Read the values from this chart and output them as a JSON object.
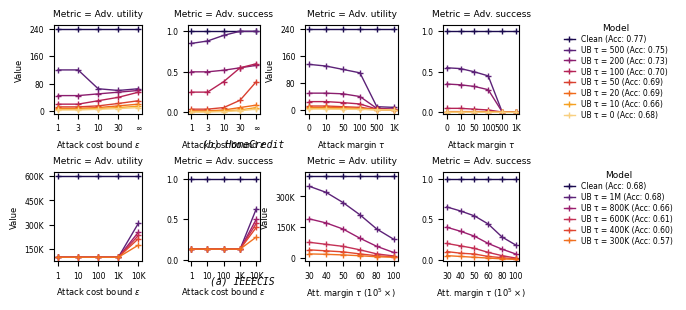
{
  "ieee_colors": [
    "#1a0a4e",
    "#5c2278",
    "#8b1e6e",
    "#b52255",
    "#d94030",
    "#f06a1a",
    "#f5a020",
    "#f8d080"
  ],
  "ieee_labels": [
    "Clean (Acc: 0.77)",
    "UB τ = 500 (Acc: 0.75)",
    "UB τ = 200 (Acc: 0.73)",
    "UB τ = 100 (Acc: 0.70)",
    "UB τ = 50 (Acc: 0.69)",
    "UB τ = 20 (Acc: 0.69)",
    "UB τ = 10 (Acc: 0.66)",
    "UB τ = 0 (Acc: 0.68)"
  ],
  "hc_colors": [
    "#1a0a4e",
    "#5c2278",
    "#9b1e6e",
    "#c43055",
    "#e04530",
    "#f07020"
  ],
  "hc_labels": [
    "Clean (Acc: 0.68)",
    "UB τ = 1M (Acc: 0.68)",
    "UB τ = 800K (Acc: 0.66)",
    "UB τ = 600K (Acc: 0.61)",
    "UB τ = 400K (Acc: 0.60)",
    "UB τ = 300K (Acc: 0.57)"
  ],
  "ieee_eps_xticks": [
    "1",
    "3",
    "10",
    "30",
    "∞"
  ],
  "ieee_eps_xvals": [
    0,
    1,
    2,
    3,
    4
  ],
  "ieee_tau_xticks": [
    "0",
    "10",
    "50",
    "100",
    "500",
    "1K"
  ],
  "ieee_tau_xvals": [
    0,
    1,
    2,
    3,
    4,
    5
  ],
  "hc_eps_xticks": [
    "1",
    "10",
    "100",
    "1K",
    "10K"
  ],
  "hc_eps_xvals": [
    0,
    1,
    2,
    3,
    4
  ],
  "hc_tau_xticks": [
    "30",
    "40",
    "50",
    "60",
    "80",
    "100"
  ],
  "hc_tau_xvals": [
    0,
    1,
    2,
    3,
    4,
    5
  ],
  "ieee_eps_utility": [
    [
      240,
      240,
      240,
      240,
      240
    ],
    [
      120,
      120,
      65,
      60,
      65
    ],
    [
      45,
      45,
      50,
      55,
      60
    ],
    [
      20,
      20,
      30,
      40,
      55
    ],
    [
      12,
      12,
      15,
      22,
      30
    ],
    [
      8,
      8,
      10,
      15,
      20
    ],
    [
      5,
      5,
      7,
      10,
      14
    ],
    [
      3,
      3,
      5,
      7,
      10
    ]
  ],
  "ieee_eps_success": [
    [
      1.0,
      1.0,
      1.0,
      1.0,
      1.0
    ],
    [
      0.85,
      0.88,
      0.95,
      1.0,
      1.0
    ],
    [
      0.5,
      0.5,
      0.52,
      0.55,
      0.58
    ],
    [
      0.25,
      0.25,
      0.38,
      0.55,
      0.6
    ],
    [
      0.04,
      0.04,
      0.06,
      0.15,
      0.38
    ],
    [
      0.02,
      0.02,
      0.03,
      0.06,
      0.09
    ],
    [
      0.01,
      0.01,
      0.02,
      0.03,
      0.06
    ],
    [
      0.005,
      0.005,
      0.01,
      0.02,
      0.04
    ]
  ],
  "ieee_tau_utility": [
    [
      240,
      240,
      240,
      240,
      240,
      240
    ],
    [
      135,
      130,
      120,
      110,
      10,
      8
    ],
    [
      50,
      50,
      48,
      40,
      5,
      3
    ],
    [
      25,
      25,
      22,
      18,
      3,
      2
    ],
    [
      12,
      12,
      10,
      8,
      2,
      1
    ],
    [
      8,
      8,
      7,
      5,
      1.5,
      0.8
    ],
    [
      5,
      5,
      4,
      3,
      1,
      0.5
    ],
    [
      3,
      3,
      2.5,
      2,
      0.8,
      0.3
    ]
  ],
  "ieee_tau_success": [
    [
      1.0,
      1.0,
      1.0,
      1.0,
      1.0,
      1.0
    ],
    [
      0.55,
      0.54,
      0.5,
      0.45,
      0.01,
      0.005
    ],
    [
      0.35,
      0.34,
      0.32,
      0.28,
      0.01,
      0.005
    ],
    [
      0.05,
      0.05,
      0.04,
      0.03,
      0.005,
      0.003
    ],
    [
      0.01,
      0.01,
      0.01,
      0.01,
      0.003,
      0.002
    ],
    [
      0.005,
      0.005,
      0.005,
      0.005,
      0.002,
      0.001
    ],
    [
      0.003,
      0.003,
      0.003,
      0.003,
      0.001,
      0.001
    ],
    [
      0.002,
      0.002,
      0.002,
      0.002,
      0.001,
      0.001
    ]
  ],
  "hc_eps_utility": [
    [
      600000,
      600000,
      600000,
      600000,
      600000
    ],
    [
      100000,
      100000,
      100000,
      100000,
      310000
    ],
    [
      100000,
      100000,
      100000,
      100000,
      255000
    ],
    [
      100000,
      100000,
      100000,
      100000,
      235000
    ],
    [
      100000,
      100000,
      100000,
      100000,
      215000
    ],
    [
      100000,
      100000,
      100000,
      100000,
      175000
    ]
  ],
  "hc_eps_success": [
    [
      1.0,
      1.0,
      1.0,
      1.0,
      1.0
    ],
    [
      0.13,
      0.13,
      0.13,
      0.13,
      0.63
    ],
    [
      0.13,
      0.13,
      0.13,
      0.13,
      0.5
    ],
    [
      0.13,
      0.13,
      0.13,
      0.13,
      0.45
    ],
    [
      0.13,
      0.13,
      0.13,
      0.13,
      0.4
    ],
    [
      0.13,
      0.13,
      0.13,
      0.13,
      0.28
    ]
  ],
  "hc_tau_utility": [
    [
      400000,
      400000,
      400000,
      400000,
      400000,
      400000
    ],
    [
      350000,
      320000,
      270000,
      210000,
      140000,
      90000
    ],
    [
      190000,
      170000,
      140000,
      95000,
      55000,
      25000
    ],
    [
      75000,
      65000,
      55000,
      38000,
      18000,
      8000
    ],
    [
      38000,
      33000,
      28000,
      18000,
      9000,
      4000
    ],
    [
      18000,
      16000,
      13000,
      9000,
      4000,
      1500
    ]
  ],
  "hc_tau_success": [
    [
      1.0,
      1.0,
      1.0,
      1.0,
      1.0,
      1.0
    ],
    [
      0.65,
      0.6,
      0.54,
      0.44,
      0.28,
      0.18
    ],
    [
      0.4,
      0.35,
      0.29,
      0.2,
      0.13,
      0.07
    ],
    [
      0.2,
      0.17,
      0.14,
      0.09,
      0.05,
      0.02
    ],
    [
      0.1,
      0.08,
      0.07,
      0.04,
      0.025,
      0.01
    ],
    [
      0.05,
      0.04,
      0.03,
      0.02,
      0.01,
      0.004
    ]
  ],
  "marker": "+",
  "markersize": 4,
  "linewidth": 1.0
}
